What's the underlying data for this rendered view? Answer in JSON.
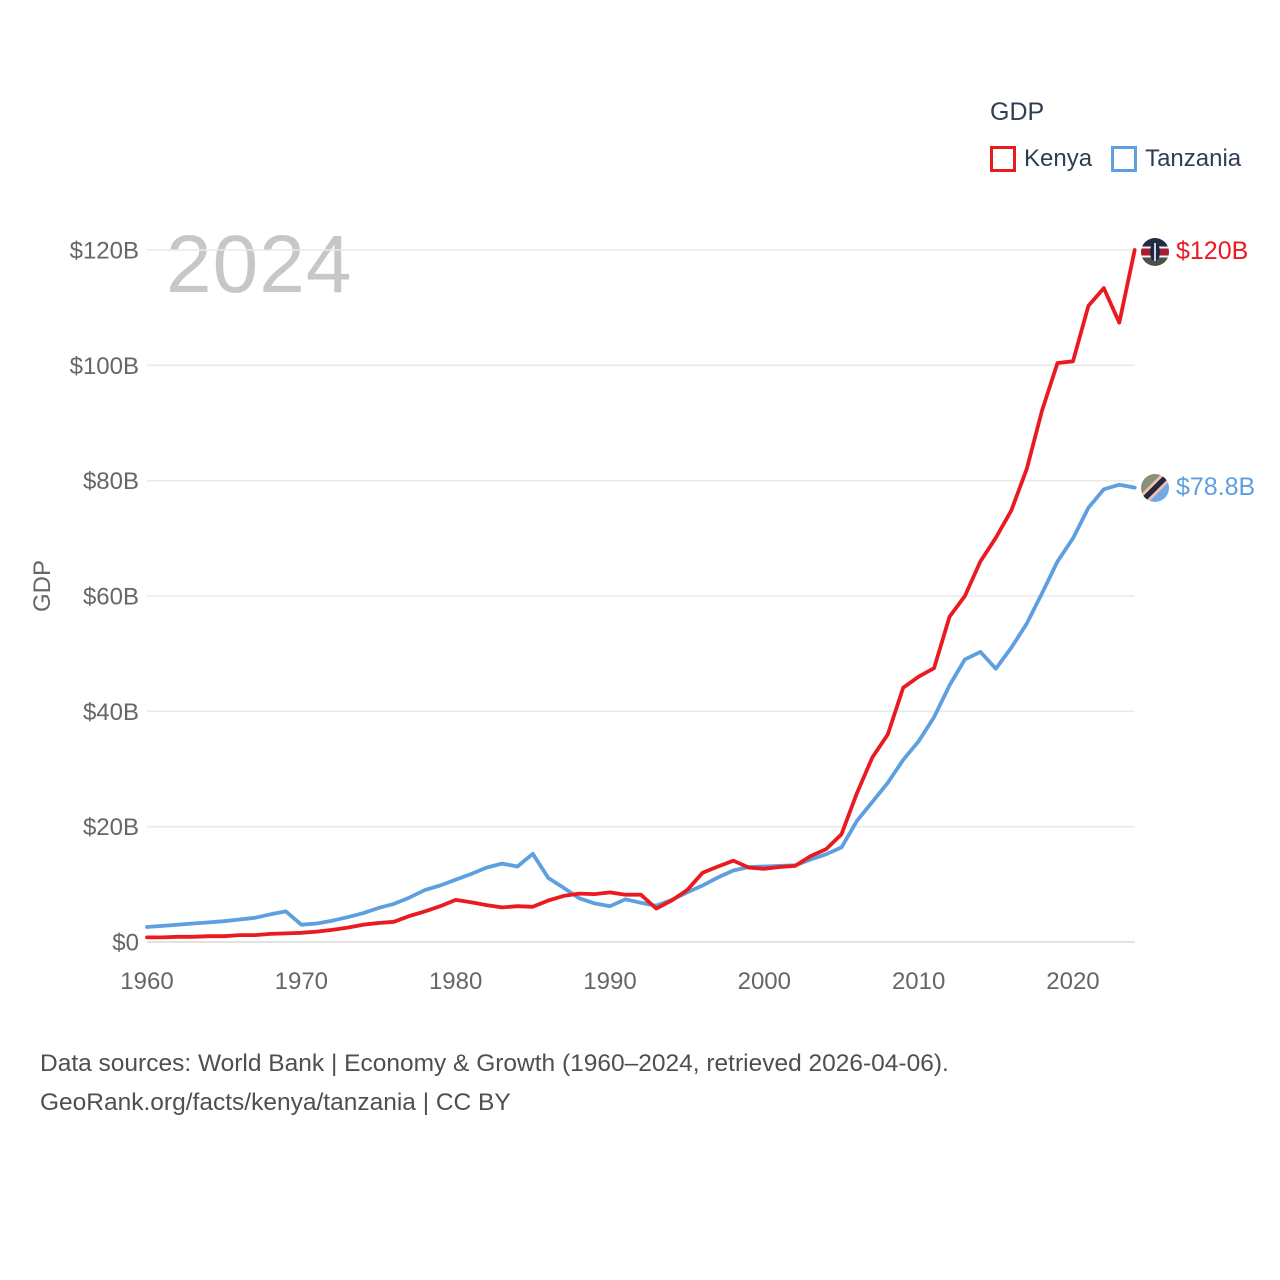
{
  "legend": {
    "title": "GDP",
    "items": [
      {
        "label": "Kenya",
        "color": "#ea1a21"
      },
      {
        "label": "Tanzania",
        "color": "#5e9fe0"
      }
    ]
  },
  "watermark": "2024",
  "y_axis": {
    "title": "GDP",
    "ticks": [
      "$0",
      "$20B",
      "$40B",
      "$60B",
      "$80B",
      "$100B",
      "$120B"
    ],
    "tick_values": [
      0,
      20,
      40,
      60,
      80,
      100,
      120
    ]
  },
  "x_axis": {
    "ticks": [
      "1960",
      "1970",
      "1980",
      "1990",
      "2000",
      "2010",
      "2020"
    ],
    "tick_values": [
      1960,
      1970,
      1980,
      1990,
      2000,
      2010,
      2020
    ]
  },
  "end_labels": [
    {
      "series": "Kenya",
      "text": "$120B",
      "flag": "kenya-flag-icon"
    },
    {
      "series": "Tanzania",
      "text": "$78.8B",
      "flag": "tanzania-flag-icon"
    }
  ],
  "footer": {
    "line1": "Data sources: World Bank | Economy & Growth (1960–2024, retrieved 2026-04-06).",
    "line2": "GeoRank.org/facts/kenya/tanzania | CC BY"
  },
  "chart_data": {
    "type": "line",
    "title": "GDP",
    "xlabel": "",
    "ylabel": "GDP",
    "x_range": [
      1960,
      2024
    ],
    "ylim": [
      0,
      120
    ],
    "grid": "horizontal",
    "legend_position": "top-right",
    "units": "billions USD",
    "x": [
      1960,
      1961,
      1962,
      1963,
      1964,
      1965,
      1966,
      1967,
      1968,
      1969,
      1970,
      1971,
      1972,
      1973,
      1974,
      1975,
      1976,
      1977,
      1978,
      1979,
      1980,
      1981,
      1982,
      1983,
      1984,
      1985,
      1986,
      1987,
      1988,
      1989,
      1990,
      1991,
      1992,
      1993,
      1994,
      1995,
      1996,
      1997,
      1998,
      1999,
      2000,
      2001,
      2002,
      2003,
      2004,
      2005,
      2006,
      2007,
      2008,
      2009,
      2010,
      2011,
      2012,
      2013,
      2014,
      2015,
      2016,
      2017,
      2018,
      2019,
      2020,
      2021,
      2022,
      2023,
      2024
    ],
    "series": [
      {
        "name": "Kenya",
        "color": "#ea1a21",
        "end_label": "$120B",
        "values": [
          0.8,
          0.8,
          0.9,
          0.9,
          1.0,
          1.0,
          1.2,
          1.2,
          1.4,
          1.5,
          1.6,
          1.8,
          2.1,
          2.5,
          3.0,
          3.3,
          3.5,
          4.5,
          5.3,
          6.2,
          7.3,
          6.9,
          6.4,
          6.0,
          6.2,
          6.1,
          7.2,
          8.0,
          8.4,
          8.3,
          8.6,
          8.2,
          8.2,
          5.8,
          7.2,
          9.0,
          12.0,
          13.1,
          14.1,
          12.9,
          12.7,
          13.0,
          13.2,
          14.9,
          16.1,
          18.7,
          25.8,
          32.0,
          36.0,
          44.1,
          46.0,
          47.5,
          56.4,
          60.0,
          66.0,
          70.1,
          74.8,
          82.0,
          92.2,
          100.4,
          100.7,
          110.3,
          113.4,
          107.4,
          120.0
        ]
      },
      {
        "name": "Tanzania",
        "color": "#5e9fe0",
        "end_label": "$78.8B",
        "values": [
          2.6,
          2.8,
          3.0,
          3.2,
          3.4,
          3.6,
          3.9,
          4.2,
          4.8,
          5.3,
          3.0,
          3.2,
          3.7,
          4.3,
          5.0,
          5.9,
          6.6,
          7.7,
          9.0,
          9.8,
          10.8,
          11.8,
          12.9,
          13.6,
          13.1,
          15.3,
          11.1,
          9.4,
          7.6,
          6.7,
          6.2,
          7.4,
          6.8,
          6.3,
          7.3,
          8.6,
          9.8,
          11.2,
          12.4,
          13.0,
          13.1,
          13.2,
          13.3,
          14.3,
          15.2,
          16.4,
          21.0,
          24.3,
          27.6,
          31.6,
          34.8,
          39.0,
          44.5,
          49.0,
          50.3,
          47.4,
          51.0,
          55.2,
          60.5,
          66.0,
          70.0,
          75.3,
          78.5,
          79.3,
          78.8
        ]
      }
    ]
  }
}
